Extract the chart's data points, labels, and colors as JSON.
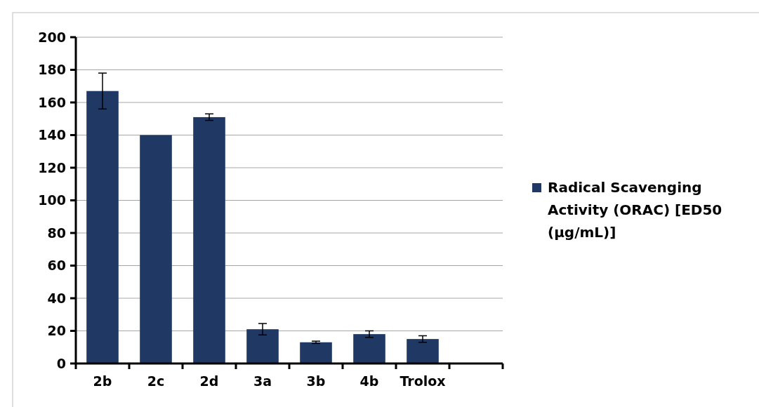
{
  "chart_data": {
    "type": "bar",
    "categories": [
      "2b",
      "2c",
      "2d",
      "3a",
      "3b",
      "4b",
      "Trolox",
      null
    ],
    "series": [
      {
        "name": "Radical Scavenging Activity (ORAC) [ED50 (µg/mL)]",
        "color": "#1f3864",
        "values": [
          167,
          140,
          151,
          21,
          13,
          18,
          15,
          null
        ],
        "errors": [
          11,
          null,
          2,
          3.5,
          0.7,
          2,
          2,
          null
        ]
      }
    ],
    "ylim": [
      0,
      200
    ],
    "yticks": [
      0,
      20,
      40,
      60,
      80,
      100,
      120,
      140,
      160,
      180,
      200
    ],
    "grid": "y",
    "legend": "right"
  }
}
